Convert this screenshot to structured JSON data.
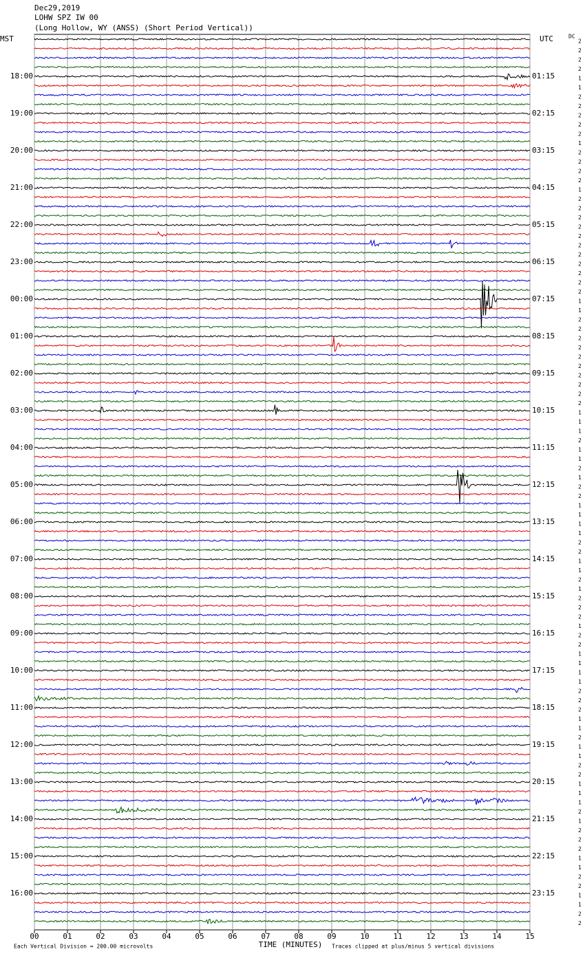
{
  "header": {
    "date": "Dec29,2019",
    "station": "LOHW SPZ IW 00",
    "location": "(Long Hollow, WY (ANSS) (Short Period Vertical))"
  },
  "left_label": "MST",
  "right_label": "UTC",
  "dc_label": "DC",
  "left_times": [
    "18:00",
    "19:00",
    "20:00",
    "21:00",
    "22:00",
    "23:00",
    "00:00",
    "01:00",
    "02:00",
    "03:00",
    "04:00",
    "05:00",
    "06:00",
    "07:00",
    "08:00",
    "09:00",
    "10:00",
    "11:00",
    "12:00",
    "13:00",
    "14:00",
    "15:00",
    "16:00"
  ],
  "right_times": [
    "01:15",
    "02:15",
    "03:15",
    "04:15",
    "05:15",
    "06:15",
    "07:15",
    "08:15",
    "09:15",
    "10:15",
    "11:15",
    "12:15",
    "13:15",
    "14:15",
    "15:15",
    "16:15",
    "17:15",
    "18:15",
    "19:15",
    "20:15",
    "21:15",
    "22:15",
    "23:15"
  ],
  "x_ticks": [
    "00",
    "01",
    "02",
    "03",
    "04",
    "05",
    "06",
    "07",
    "08",
    "09",
    "10",
    "11",
    "12",
    "13",
    "14",
    "15"
  ],
  "x_label": "TIME (MINUTES)",
  "footer_left": "Each Vertical Division =  200.00 microvolts",
  "footer_right": "Traces clipped at plus/minus 5 vertical divisions",
  "dc_values": [
    2,
    2,
    2,
    2,
    1,
    1,
    2,
    2,
    2,
    2,
    2,
    1,
    2,
    2,
    2,
    2,
    1,
    2,
    2,
    2,
    2,
    2,
    2,
    2,
    2,
    2,
    2,
    2,
    1,
    1,
    2,
    2,
    2,
    2,
    2,
    2,
    2,
    2,
    2,
    2,
    1,
    1,
    1,
    2,
    1,
    1,
    2,
    1,
    2,
    2,
    1,
    1,
    1,
    1,
    2,
    2,
    1,
    1,
    2,
    1,
    2,
    2,
    2,
    1,
    2,
    2,
    1,
    1,
    1,
    1,
    2,
    2,
    2,
    1,
    1,
    2,
    1,
    1,
    2,
    2,
    1,
    1,
    1,
    2,
    1,
    2,
    2,
    2,
    1,
    1,
    2,
    2,
    1,
    1,
    2,
    2
  ]
}
